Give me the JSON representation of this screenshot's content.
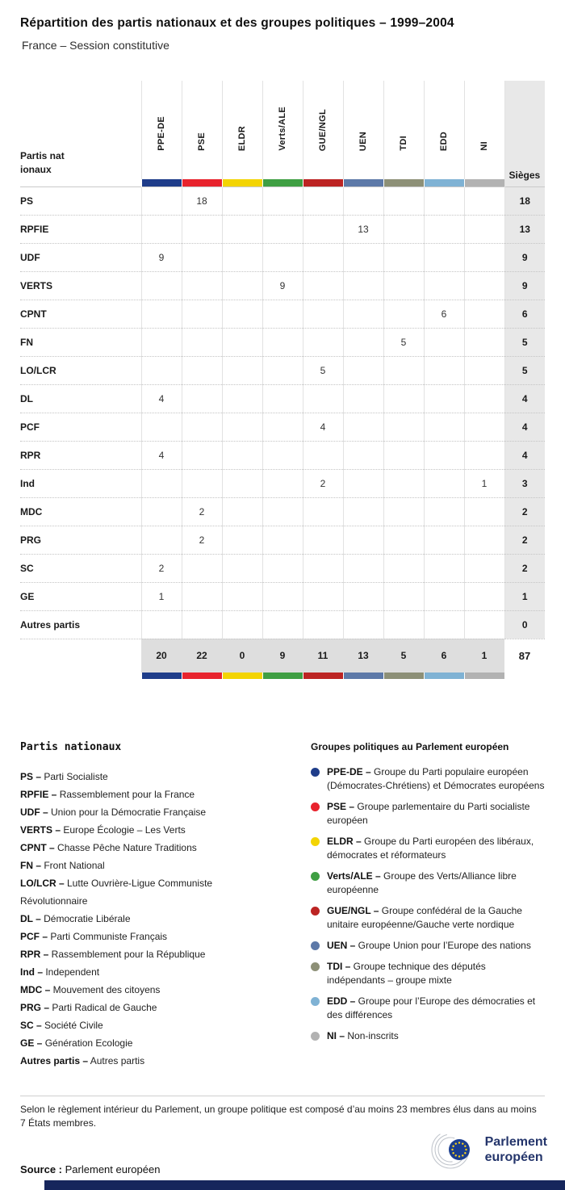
{
  "chart_data": {
    "type": "table",
    "title": "Répartition des partis nationaux et des groupes politiques – 1999–2004",
    "subtitle": "France – Session constitutive",
    "corner_label": "Partis nationaux",
    "sieges_label": "Sièges",
    "groups": [
      {
        "label": "PPE-DE",
        "color": "#1f3d8a"
      },
      {
        "label": "PSE",
        "color": "#e8232d"
      },
      {
        "label": "ELDR",
        "color": "#f3d403"
      },
      {
        "label": "Verts/ALE",
        "color": "#3f9f43"
      },
      {
        "label": "GUE/NGL",
        "color": "#bc2423"
      },
      {
        "label": "UEN",
        "color": "#5d79a8"
      },
      {
        "label": "TDI",
        "color": "#8d9077"
      },
      {
        "label": "EDD",
        "color": "#7fb2d4"
      },
      {
        "label": "NI",
        "color": "#b2b2b2"
      }
    ],
    "rows": [
      {
        "label": "PS",
        "values": [
          null,
          18,
          null,
          null,
          null,
          null,
          null,
          null,
          null
        ],
        "sieges": 18
      },
      {
        "label": "RPFIE",
        "values": [
          null,
          null,
          null,
          null,
          null,
          13,
          null,
          null,
          null
        ],
        "sieges": 13
      },
      {
        "label": "UDF",
        "values": [
          9,
          null,
          null,
          null,
          null,
          null,
          null,
          null,
          null
        ],
        "sieges": 9
      },
      {
        "label": "VERTS",
        "values": [
          null,
          null,
          null,
          9,
          null,
          null,
          null,
          null,
          null
        ],
        "sieges": 9
      },
      {
        "label": "CPNT",
        "values": [
          null,
          null,
          null,
          null,
          null,
          null,
          null,
          6,
          null
        ],
        "sieges": 6
      },
      {
        "label": "FN",
        "values": [
          null,
          null,
          null,
          null,
          null,
          null,
          5,
          null,
          null
        ],
        "sieges": 5
      },
      {
        "label": "LO/LCR",
        "values": [
          null,
          null,
          null,
          null,
          5,
          null,
          null,
          null,
          null
        ],
        "sieges": 5
      },
      {
        "label": "DL",
        "values": [
          4,
          null,
          null,
          null,
          null,
          null,
          null,
          null,
          null
        ],
        "sieges": 4
      },
      {
        "label": "PCF",
        "values": [
          null,
          null,
          null,
          null,
          4,
          null,
          null,
          null,
          null
        ],
        "sieges": 4
      },
      {
        "label": "RPR",
        "values": [
          4,
          null,
          null,
          null,
          null,
          null,
          null,
          null,
          null
        ],
        "sieges": 4
      },
      {
        "label": "Ind",
        "values": [
          null,
          null,
          null,
          null,
          2,
          null,
          null,
          null,
          1
        ],
        "sieges": 3
      },
      {
        "label": "MDC",
        "values": [
          null,
          2,
          null,
          null,
          null,
          null,
          null,
          null,
          null
        ],
        "sieges": 2
      },
      {
        "label": "PRG",
        "values": [
          null,
          2,
          null,
          null,
          null,
          null,
          null,
          null,
          null
        ],
        "sieges": 2
      },
      {
        "label": "SC",
        "values": [
          2,
          null,
          null,
          null,
          null,
          null,
          null,
          null,
          null
        ],
        "sieges": 2
      },
      {
        "label": "GE",
        "values": [
          1,
          null,
          null,
          null,
          null,
          null,
          null,
          null,
          null
        ],
        "sieges": 1
      },
      {
        "label": "Autres partis",
        "values": [
          null,
          null,
          null,
          null,
          null,
          null,
          null,
          null,
          null
        ],
        "sieges": 0
      }
    ],
    "totals": [
      20,
      22,
      0,
      9,
      11,
      13,
      5,
      6,
      1
    ],
    "total_sieges": 87
  },
  "legend_parties": {
    "title": "Partis nationaux",
    "items": [
      {
        "abbr": "PS",
        "name": "Parti Socialiste"
      },
      {
        "abbr": "RPFIE",
        "name": "Rassemblement pour la France"
      },
      {
        "abbr": "UDF",
        "name": "Union pour la Démocratie Française"
      },
      {
        "abbr": "VERTS",
        "name": "Europe Écologie – Les Verts"
      },
      {
        "abbr": "CPNT",
        "name": "Chasse Pêche Nature Traditions"
      },
      {
        "abbr": "FN",
        "name": "Front National"
      },
      {
        "abbr": "LO/LCR",
        "name": "Lutte Ouvrière-Ligue Communiste Révolutionnaire"
      },
      {
        "abbr": "DL",
        "name": "Démocratie Libérale"
      },
      {
        "abbr": "PCF",
        "name": "Parti Communiste Français"
      },
      {
        "abbr": "RPR",
        "name": "Rassemblement pour la République"
      },
      {
        "abbr": "Ind",
        "name": "Independent"
      },
      {
        "abbr": "MDC",
        "name": "Mouvement des citoyens"
      },
      {
        "abbr": "PRG",
        "name": "Parti Radical de Gauche"
      },
      {
        "abbr": "SC",
        "name": "Société Civile"
      },
      {
        "abbr": "GE",
        "name": "Génération Ecologie"
      },
      {
        "abbr": "Autres partis",
        "name": "Autres partis"
      }
    ]
  },
  "legend_groups": {
    "title": "Groupes politiques au Parlement européen",
    "items": [
      {
        "abbr": "PPE-DE",
        "name": "Groupe du Parti populaire européen (Démocrates-Chrétiens) et Démocrates européens"
      },
      {
        "abbr": "PSE",
        "name": "Groupe parlementaire du Parti socialiste européen"
      },
      {
        "abbr": "ELDR",
        "name": "Groupe du Parti européen des libéraux, démocrates et réformateurs"
      },
      {
        "abbr": "Verts/ALE",
        "name": "Groupe des Verts/Alliance libre européenne"
      },
      {
        "abbr": "GUE/NGL",
        "name": "Groupe confédéral de la Gauche unitaire européenne/Gauche verte nordique"
      },
      {
        "abbr": "UEN",
        "name": "Groupe Union pour l’Europe des nations"
      },
      {
        "abbr": "TDI",
        "name": "Groupe technique des députés indépendants – groupe mixte"
      },
      {
        "abbr": "EDD",
        "name": "Groupe pour l’Europe des démocraties et des différences"
      },
      {
        "abbr": "NI",
        "name": "Non-inscrits"
      }
    ]
  },
  "footer": {
    "note": "Selon le règlement intérieur du Parlement, un groupe politique est composé d’au moins 23 membres élus dans au moins 7 États membres.",
    "source_label": "Source :",
    "source_value": "Parlement européen",
    "logo_line1": "Parlement",
    "logo_line2": "européen"
  },
  "colors": {
    "footer_bar": "#16265c",
    "sieges_column_bg": "#e8e8e8",
    "totals_band_bg": "#dedede",
    "logo_navy": "#24356b",
    "eu_flag_blue": "#1b3e8f",
    "eu_star_yellow": "#ffd617"
  }
}
